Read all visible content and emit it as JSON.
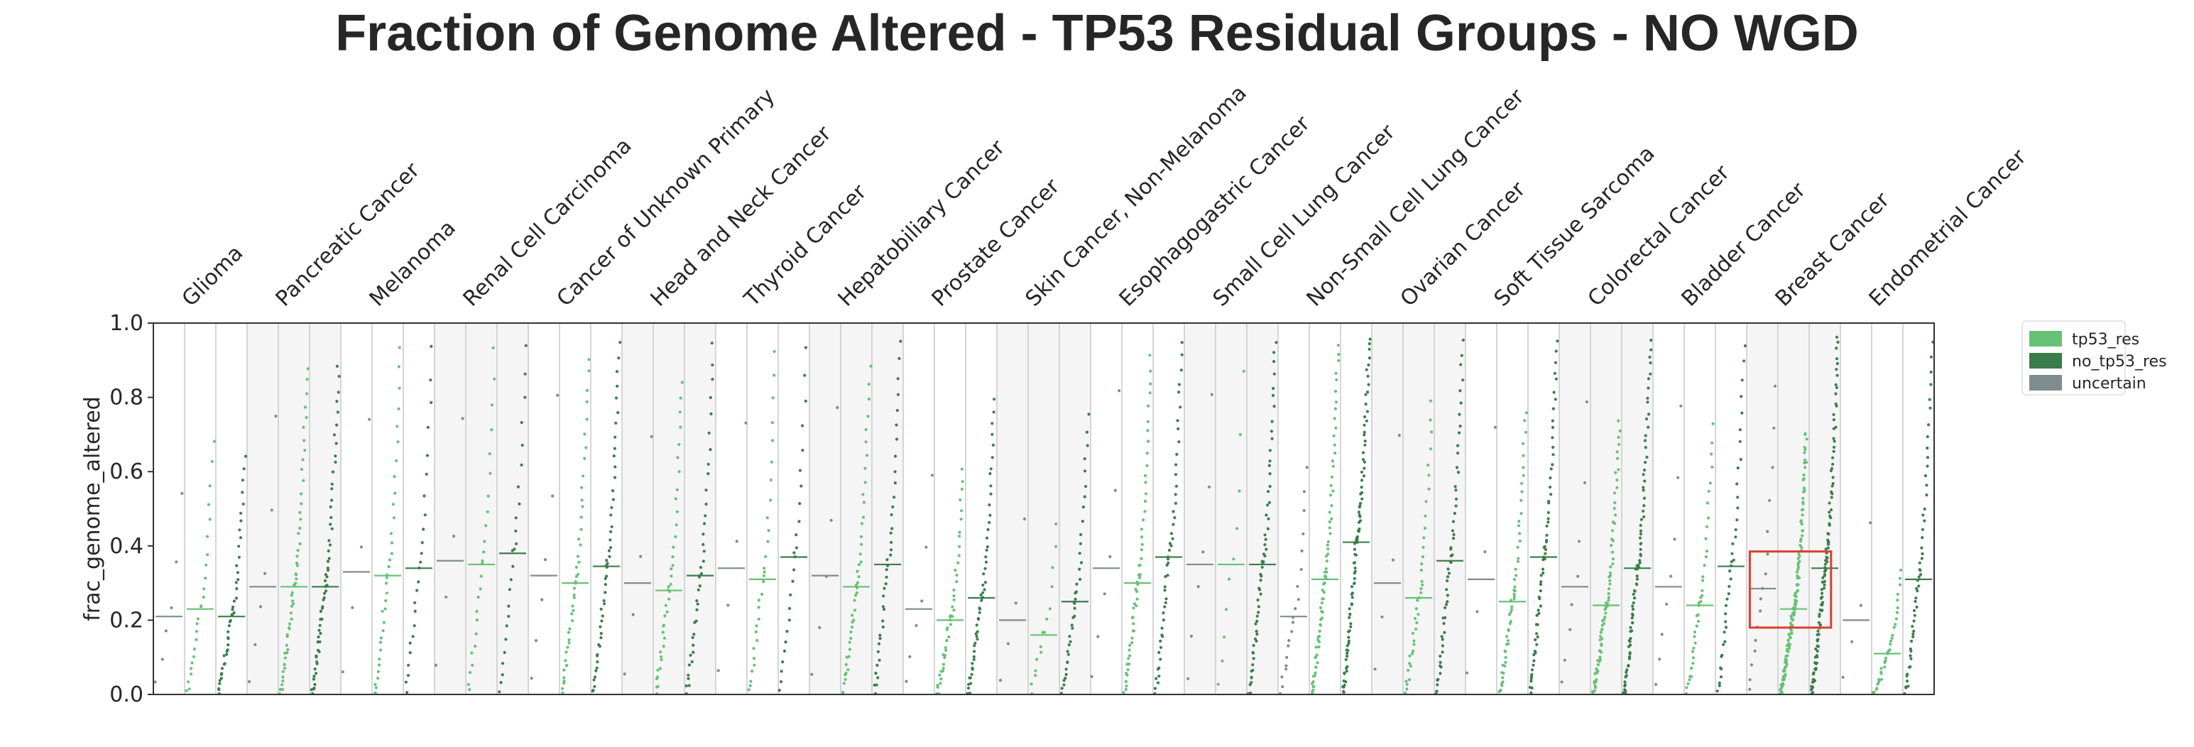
{
  "chart_data": {
    "type": "scatter",
    "title": "Fraction of Genome Altered - TP53 Residual Groups - NO WGD",
    "ylabel": "frac_genome_altered",
    "xlabel": "",
    "ylim": [
      0,
      1
    ],
    "yticks": [
      "0.0",
      "0.2",
      "0.4",
      "0.6",
      "0.8",
      "1.0"
    ],
    "grid": false,
    "legend_position": "right",
    "categories": [
      "Glioma",
      "Pancreatic Cancer",
      "Melanoma",
      "Renal Cell Carcinoma",
      "Cancer of Unknown Primary",
      "Head and Neck Cancer",
      "Thyroid Cancer",
      "Hepatobiliary Cancer",
      "Prostate Cancer",
      "Skin Cancer, Non-Melanoma",
      "Esophagogastric Cancer",
      "Small Cell Lung Cancer",
      "Non-Small Cell Lung Cancer",
      "Ovarian Cancer",
      "Soft Tissue Sarcoma",
      "Colorectal Cancer",
      "Bladder Cancer",
      "Breast Cancer",
      "Endometrial Cancer"
    ],
    "series": [
      {
        "name": "tp53_res",
        "color": "#66c175",
        "medians": [
          0.23,
          0.29,
          0.32,
          0.35,
          0.3,
          0.28,
          0.31,
          0.29,
          0.2,
          0.16,
          0.3,
          0.35,
          0.31,
          0.26,
          0.25,
          0.24,
          0.24,
          0.23,
          0.11
        ],
        "counts": [
          25,
          55,
          35,
          25,
          45,
          40,
          30,
          45,
          45,
          15,
          55,
          10,
          75,
          40,
          55,
          75,
          40,
          130,
          35
        ]
      },
      {
        "name": "no_tp53_res",
        "color": "#3a7d4a",
        "medians": [
          0.21,
          0.29,
          0.34,
          0.38,
          0.345,
          0.32,
          0.37,
          0.35,
          0.26,
          0.25,
          0.37,
          0.35,
          0.41,
          0.36,
          0.37,
          0.34,
          0.345,
          0.34,
          0.31
        ],
        "counts": [
          45,
          60,
          25,
          25,
          50,
          40,
          25,
          40,
          55,
          40,
          50,
          60,
          95,
          55,
          65,
          85,
          40,
          110,
          55
        ]
      },
      {
        "name": "uncertain",
        "color": "#7f8c8d",
        "medians": [
          0.21,
          0.29,
          0.33,
          0.36,
          0.32,
          0.3,
          0.34,
          0.32,
          0.23,
          0.2,
          0.34,
          0.35,
          0.21,
          0.3,
          0.31,
          0.29,
          0.29,
          0.285,
          0.2
        ],
        "counts": [
          6,
          6,
          4,
          4,
          6,
          4,
          4,
          5,
          6,
          4,
          6,
          6,
          20,
          4,
          4,
          8,
          8,
          16,
          4
        ]
      }
    ],
    "annotations": [
      {
        "type": "highlight-box",
        "category": "Breast Cancer",
        "y_range": [
          0.18,
          0.385
        ],
        "color": "#d9402b"
      }
    ],
    "legend": [
      "tp53_res",
      "no_tp53_res",
      "uncertain"
    ]
  }
}
